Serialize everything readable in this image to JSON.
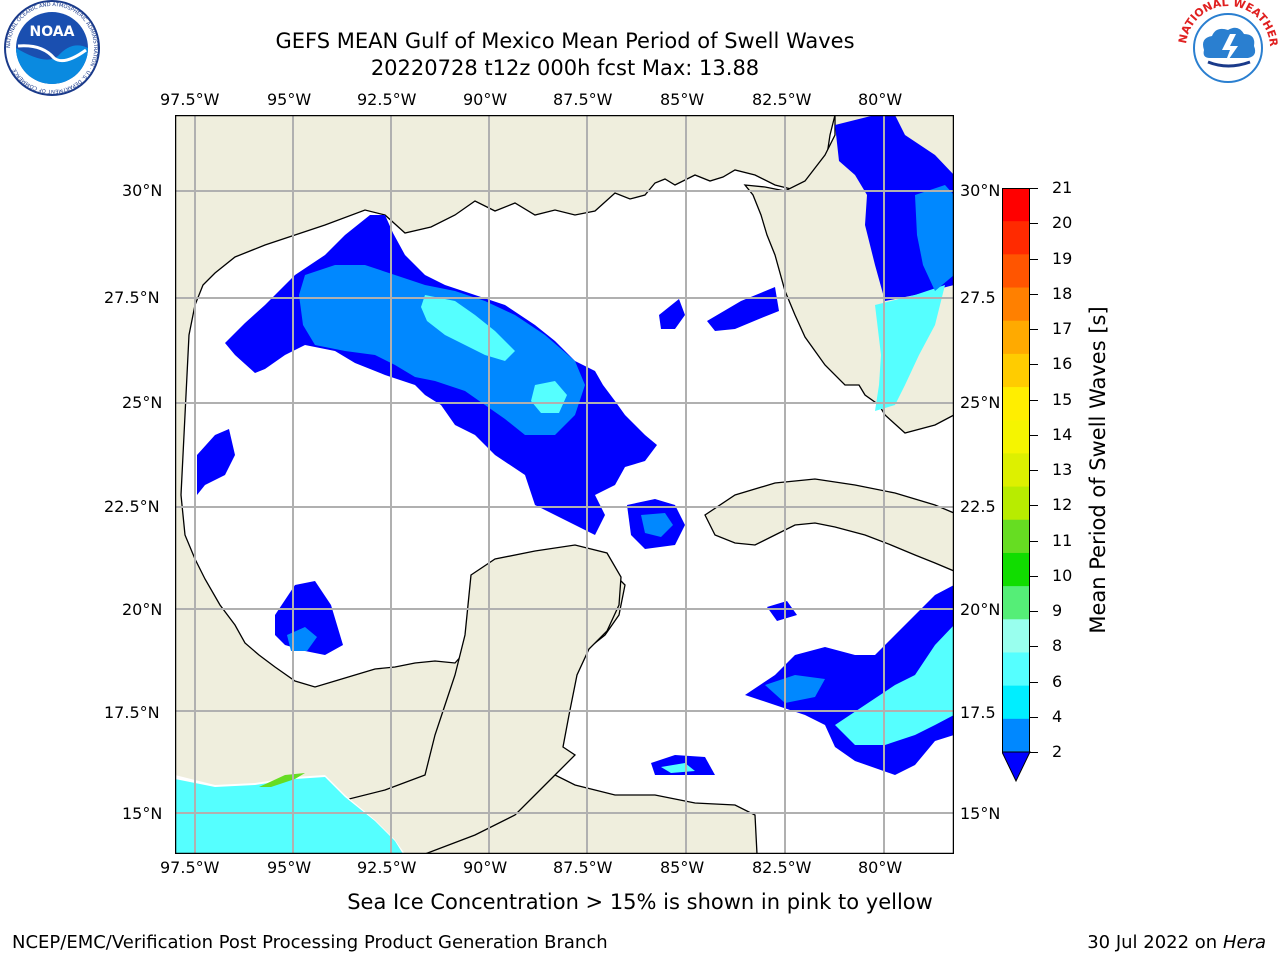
{
  "title_line1": "GEFS MEAN Gulf of Mexico Mean Period of Swell Waves",
  "title_line2": "20220728 t12z 000h fcst   Max: 13.88",
  "lon_labels": [
    "97.5°W",
    "95°W",
    "92.5°W",
    "90°W",
    "87.5°W",
    "85°W",
    "82.5°W",
    "80°W"
  ],
  "lat_labels": [
    "30°N",
    "27.5°N",
    "25°N",
    "22.5°N",
    "20°N",
    "17.5°N",
    "15°N"
  ],
  "lat_labels_right": [
    "30°N",
    "27.5",
    "25°N",
    "22.5",
    "20°N",
    "17.5",
    "15°N"
  ],
  "colorbar": {
    "title": "Mean Period of Swell Waves [s]",
    "ticks": [
      "21",
      "20",
      "19",
      "18",
      "17",
      "16",
      "15",
      "14",
      "13",
      "12",
      "11",
      "10",
      "9",
      "8",
      "6",
      "4",
      "2"
    ],
    "colors": [
      "#ff0000",
      "#ff2a00",
      "#ff5500",
      "#ff8000",
      "#ffaa00",
      "#ffcc00",
      "#ffee00",
      "#f5f500",
      "#ddf000",
      "#b8ec00",
      "#66dd22",
      "#11dd00",
      "#55ee77",
      "#99ffee",
      "#55ffff",
      "#00eeff",
      "#0088ff",
      "#0000ff"
    ]
  },
  "note": "Sea Ice Concentration > 15% is shown in pink to yellow",
  "footer_left": "NCEP/EMC/Verification Post Processing Product Generation Branch",
  "footer_right_date": "30 Jul 2022 on ",
  "footer_right_host": "Hera",
  "logos": {
    "left": "NOAA",
    "left_ring": "NATIONAL OCEANIC AND ATMOSPHERIC ADMINISTRATION · U.S. DEPARTMENT OF COMMERCE",
    "right_ring": "NATIONAL WEATHER SERVICE"
  },
  "colors": {
    "land": "#efeedd",
    "water": "#ffffff",
    "grid": "#b0b0b0",
    "swell_2_4": "#0000ff",
    "swell_4_6": "#0088ff",
    "swell_6_8": "#55ffff"
  }
}
